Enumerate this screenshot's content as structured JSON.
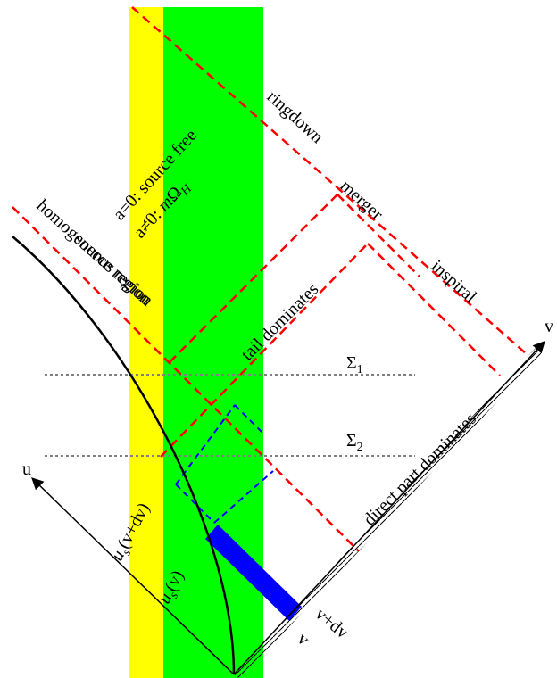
{
  "colors": {
    "yellow_band": "#ffff00",
    "green_band": "#00ff00",
    "red_dashed": "#ff0000",
    "blue_dashed": "#0000ff",
    "blue_strip": "#0000ff",
    "gray_dotted": "#808080",
    "black": "#000000"
  },
  "labels": {
    "ringdown": "ringdown",
    "merger": "merger",
    "inspiral": "inspiral",
    "source_free": "a=0: source free",
    "a_nonzero_prefix": "a≠0: ",
    "m_omega_m": "m",
    "m_omega_Omega": "Ω",
    "m_omega_H": "H",
    "homogeneous_region": "homogeneous region",
    "source_region": "source region",
    "tail_dominates": "tail dominates",
    "direct_part_dominates": "direct part dominates",
    "sigma1_main": "Σ",
    "sigma1_sub": "1",
    "sigma2_main": "Σ",
    "sigma2_sub": "2",
    "u_axis": "u",
    "v_axis": "v",
    "us_v_dv_u": "u",
    "us_v_dv_s": "s",
    "us_v_dv_arg": "(v+dv)",
    "us_v_u": "u",
    "us_v_s": "s",
    "us_v_arg": "(v)",
    "v_tick": "v",
    "v_dv_tick": "v+dv"
  }
}
